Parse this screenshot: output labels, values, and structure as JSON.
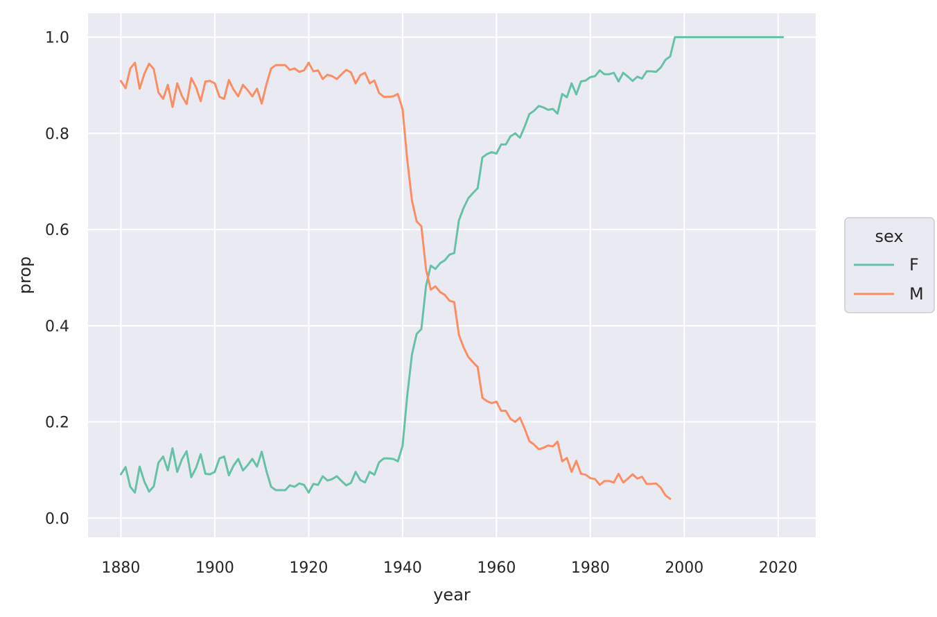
{
  "chart_data": {
    "type": "line",
    "title": "",
    "xlabel": "year",
    "ylabel": "prop",
    "xlim": [
      1873,
      2028
    ],
    "ylim": [
      -0.04,
      1.05
    ],
    "xticks": [
      1880,
      1900,
      1920,
      1940,
      1960,
      1980,
      2000,
      2020
    ],
    "yticks": [
      0.0,
      0.2,
      0.4,
      0.6,
      0.8,
      1.0
    ],
    "xtick_labels": [
      "1880",
      "1900",
      "1920",
      "1940",
      "1960",
      "1980",
      "2000",
      "2020"
    ],
    "ytick_labels": [
      "0.0",
      "0.2",
      "0.4",
      "0.6",
      "0.8",
      "1.0"
    ],
    "grid": true,
    "background": "#eaeaf2",
    "legend": {
      "title": "sex",
      "position": "right"
    },
    "series": [
      {
        "name": "F",
        "color": "#66c2a5",
        "x": [
          1880,
          1881,
          1882,
          1883,
          1884,
          1885,
          1886,
          1887,
          1888,
          1889,
          1890,
          1891,
          1892,
          1893,
          1894,
          1895,
          1896,
          1897,
          1898,
          1899,
          1900,
          1901,
          1902,
          1903,
          1904,
          1905,
          1906,
          1907,
          1908,
          1909,
          1910,
          1911,
          1912,
          1913,
          1914,
          1915,
          1916,
          1917,
          1918,
          1919,
          1920,
          1921,
          1922,
          1923,
          1924,
          1925,
          1926,
          1927,
          1928,
          1929,
          1930,
          1931,
          1932,
          1933,
          1934,
          1935,
          1936,
          1937,
          1938,
          1939,
          1940,
          1941,
          1942,
          1943,
          1944,
          1945,
          1946,
          1947,
          1948,
          1949,
          1950,
          1951,
          1952,
          1953,
          1954,
          1955,
          1956,
          1957,
          1958,
          1959,
          1960,
          1961,
          1962,
          1963,
          1964,
          1965,
          1966,
          1967,
          1968,
          1969,
          1970,
          1971,
          1972,
          1973,
          1974,
          1975,
          1976,
          1977,
          1978,
          1979,
          1980,
          1981,
          1982,
          1983,
          1984,
          1985,
          1986,
          1987,
          1988,
          1989,
          1990,
          1991,
          1992,
          1993,
          1994,
          1995,
          1996,
          1997,
          1998,
          1999,
          2000,
          2001,
          2002,
          2003,
          2004,
          2005,
          2006,
          2007,
          2008,
          2009,
          2010,
          2011,
          2012,
          2013,
          2014,
          2015,
          2016,
          2017,
          2018,
          2019,
          2020,
          2021
        ],
        "y": [
          0.091,
          0.106,
          0.065,
          0.053,
          0.107,
          0.076,
          0.055,
          0.066,
          0.115,
          0.128,
          0.099,
          0.145,
          0.096,
          0.122,
          0.139,
          0.085,
          0.104,
          0.133,
          0.092,
          0.091,
          0.096,
          0.124,
          0.128,
          0.089,
          0.109,
          0.123,
          0.099,
          0.11,
          0.123,
          0.107,
          0.138,
          0.098,
          0.065,
          0.058,
          0.058,
          0.058,
          0.068,
          0.065,
          0.072,
          0.069,
          0.053,
          0.071,
          0.069,
          0.087,
          0.078,
          0.081,
          0.087,
          0.077,
          0.068,
          0.073,
          0.096,
          0.079,
          0.074,
          0.096,
          0.09,
          0.116,
          0.124,
          0.124,
          0.123,
          0.118,
          0.15,
          0.255,
          0.34,
          0.383,
          0.393,
          0.483,
          0.525,
          0.518,
          0.53,
          0.536,
          0.548,
          0.551,
          0.619,
          0.645,
          0.665,
          0.676,
          0.686,
          0.75,
          0.757,
          0.761,
          0.758,
          0.777,
          0.777,
          0.794,
          0.8,
          0.791,
          0.814,
          0.84,
          0.847,
          0.857,
          0.854,
          0.849,
          0.851,
          0.841,
          0.882,
          0.875,
          0.904,
          0.881,
          0.908,
          0.91,
          0.917,
          0.919,
          0.931,
          0.923,
          0.923,
          0.926,
          0.908,
          0.926,
          0.918,
          0.909,
          0.918,
          0.914,
          0.929,
          0.929,
          0.928,
          0.937,
          0.953,
          0.96,
          1.0,
          1.0,
          1.0,
          1.0,
          1.0,
          1.0,
          1.0,
          1.0,
          1.0,
          1.0,
          1.0,
          1.0,
          1.0,
          1.0,
          1.0,
          1.0,
          1.0,
          1.0,
          1.0,
          1.0,
          1.0,
          1.0,
          1.0,
          1.0
        ]
      },
      {
        "name": "M",
        "color": "#fc8d62",
        "x": [
          1880,
          1881,
          1882,
          1883,
          1884,
          1885,
          1886,
          1887,
          1888,
          1889,
          1890,
          1891,
          1892,
          1893,
          1894,
          1895,
          1896,
          1897,
          1898,
          1899,
          1900,
          1901,
          1902,
          1903,
          1904,
          1905,
          1906,
          1907,
          1908,
          1909,
          1910,
          1911,
          1912,
          1913,
          1914,
          1915,
          1916,
          1917,
          1918,
          1919,
          1920,
          1921,
          1922,
          1923,
          1924,
          1925,
          1926,
          1927,
          1928,
          1929,
          1930,
          1931,
          1932,
          1933,
          1934,
          1935,
          1936,
          1937,
          1938,
          1939,
          1940,
          1941,
          1942,
          1943,
          1944,
          1945,
          1946,
          1947,
          1948,
          1949,
          1950,
          1951,
          1952,
          1953,
          1954,
          1955,
          1956,
          1957,
          1958,
          1959,
          1960,
          1961,
          1962,
          1963,
          1964,
          1965,
          1966,
          1967,
          1968,
          1969,
          1970,
          1971,
          1972,
          1973,
          1974,
          1975,
          1976,
          1977,
          1978,
          1979,
          1980,
          1981,
          1982,
          1983,
          1984,
          1985,
          1986,
          1987,
          1988,
          1989,
          1990,
          1991,
          1992,
          1993,
          1994,
          1995,
          1996,
          1997
        ],
        "y": [
          0.909,
          0.894,
          0.935,
          0.947,
          0.893,
          0.924,
          0.945,
          0.934,
          0.885,
          0.872,
          0.901,
          0.855,
          0.904,
          0.878,
          0.861,
          0.915,
          0.896,
          0.867,
          0.908,
          0.909,
          0.904,
          0.876,
          0.872,
          0.911,
          0.891,
          0.877,
          0.901,
          0.89,
          0.877,
          0.893,
          0.862,
          0.902,
          0.935,
          0.942,
          0.942,
          0.942,
          0.932,
          0.935,
          0.928,
          0.931,
          0.947,
          0.929,
          0.931,
          0.913,
          0.922,
          0.919,
          0.913,
          0.923,
          0.932,
          0.927,
          0.904,
          0.921,
          0.926,
          0.904,
          0.91,
          0.884,
          0.876,
          0.876,
          0.877,
          0.882,
          0.85,
          0.745,
          0.66,
          0.617,
          0.607,
          0.517,
          0.475,
          0.482,
          0.47,
          0.464,
          0.452,
          0.449,
          0.381,
          0.355,
          0.335,
          0.324,
          0.314,
          0.25,
          0.243,
          0.239,
          0.242,
          0.223,
          0.223,
          0.206,
          0.2,
          0.209,
          0.186,
          0.16,
          0.153,
          0.143,
          0.146,
          0.151,
          0.149,
          0.159,
          0.118,
          0.125,
          0.096,
          0.119,
          0.092,
          0.09,
          0.083,
          0.081,
          0.069,
          0.077,
          0.077,
          0.074,
          0.092,
          0.074,
          0.082,
          0.091,
          0.082,
          0.086,
          0.071,
          0.071,
          0.072,
          0.063,
          0.047,
          0.04
        ]
      }
    ]
  }
}
